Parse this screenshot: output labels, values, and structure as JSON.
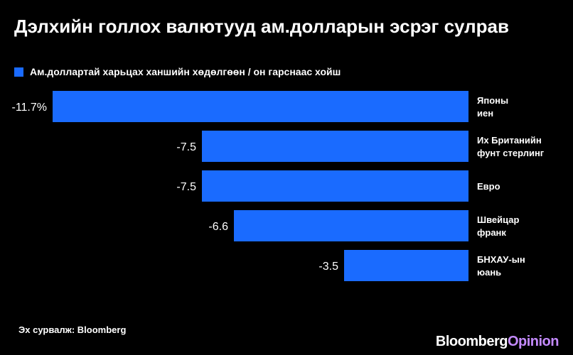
{
  "chart_data": {
    "type": "bar",
    "orientation": "horizontal",
    "title": "Дэлхийн голлох валютууд ам.долларын эсрэг сулрав",
    "legend": "Ам.доллартай харьцах ханшийн хөдөлгөөн / он гарснаас хойш",
    "categories": [
      [
        "Японы",
        "иен"
      ],
      [
        "Их Британийн",
        "фунт стерлинг"
      ],
      [
        "Евро"
      ],
      [
        "Швейцар",
        "франк"
      ],
      [
        "БНХАУ-ын",
        "юань"
      ]
    ],
    "values": [
      -11.7,
      -7.5,
      -7.5,
      -6.6,
      -3.5
    ],
    "value_labels": [
      "-11.7%",
      "-7.5",
      "-7.5",
      "-6.6",
      "-3.5"
    ],
    "xlim": [
      -11.7,
      0
    ],
    "grid": false,
    "legend_position": "top-left",
    "bar_color": "#1a6bff"
  },
  "source": "Эх сурвалж: Bloomberg",
  "logo": {
    "part1": "Bloomberg",
    "part2": "Opinion",
    "accent": "#c58bff"
  }
}
